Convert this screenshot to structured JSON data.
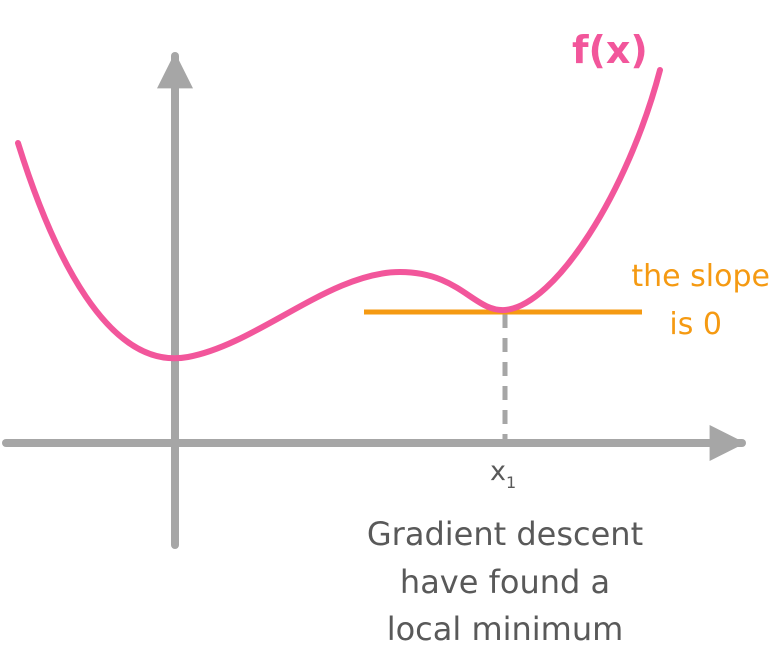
{
  "colors": {
    "axis": "#a6a6a6",
    "curve": "#f2569b",
    "tangent": "#f59a12",
    "guide": "#a6a6a6",
    "text": "#595959"
  },
  "curve": {
    "label": "f(x)"
  },
  "tangent": {
    "label_line1": "the slope",
    "label_line2": "is 0"
  },
  "point": {
    "label": "x",
    "subscript": "1"
  },
  "caption": {
    "line1": "Gradient descent",
    "line2": "have found a",
    "line3": "local minimum"
  }
}
